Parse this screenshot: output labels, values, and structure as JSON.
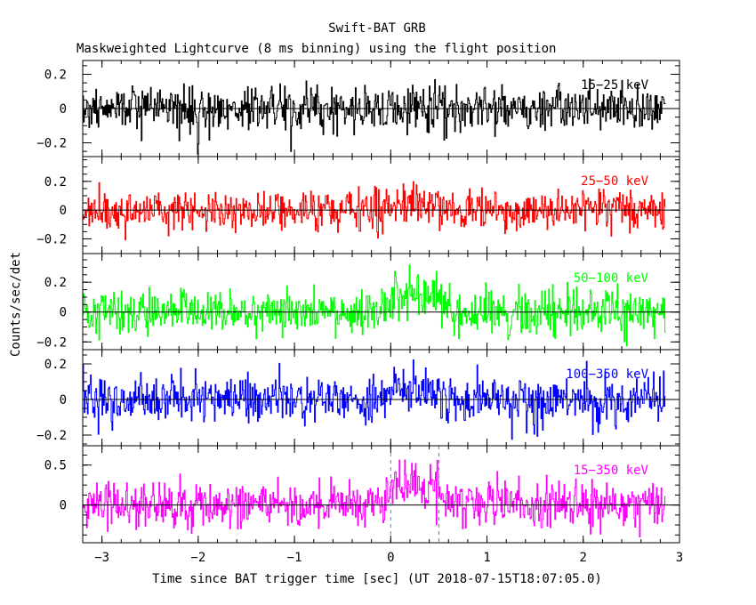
{
  "chart_data": {
    "type": "line",
    "title": "Swift-BAT GRB",
    "subtitle": "Maskweighted Lightcurve (8 ms binning) using the flight position",
    "xlabel": "Time since BAT trigger time [sec] (UT 2018-07-15T18:07:05.0)",
    "ylabel": "Counts/sec/det",
    "xlim": [
      -3.2,
      3.0
    ],
    "x_ticks": [
      -3,
      -2,
      -1,
      0,
      1,
      2,
      3
    ],
    "x_tick_labels": [
      "−3",
      "−2",
      "−1",
      "0",
      "1",
      "2",
      "3"
    ],
    "bin_size_s": 0.008,
    "data_range": [
      -3.2,
      2.85
    ],
    "markers": [
      0.0,
      0.5
    ],
    "marker_color": "#00aaff",
    "panels": [
      {
        "band": "15-25 keV",
        "label": "15−25 keV",
        "color": "#000000",
        "ylim": [
          -0.27,
          0.27
        ],
        "y_ticks": [
          -0.2,
          0,
          0.2
        ],
        "y_tick_labels": [
          "−0.2",
          "0",
          "0.2"
        ],
        "noise_sigma": 0.065,
        "peak_amplitude": 0.0
      },
      {
        "band": "25-50 keV",
        "label": "25−50 keV",
        "color": "#ff0000",
        "ylim": [
          -0.29,
          0.36
        ],
        "y_ticks": [
          -0.2,
          0,
          0.2
        ],
        "y_tick_labels": [
          "−0.2",
          "0",
          "0.2"
        ],
        "noise_sigma": 0.07,
        "peak_amplitude": 0.06
      },
      {
        "band": "50-100 keV",
        "label": "50−100 keV",
        "color": "#00ff00",
        "ylim": [
          -0.24,
          0.38
        ],
        "y_ticks": [
          -0.2,
          0,
          0.2
        ],
        "y_tick_labels": [
          "−0.2",
          "0",
          "0.2"
        ],
        "noise_sigma": 0.075,
        "peak_amplitude": 0.13
      },
      {
        "band": "100-350 keV",
        "label": "100−350 keV",
        "color": "#0000ff",
        "ylim": [
          -0.25,
          0.27
        ],
        "y_ticks": [
          -0.2,
          0,
          0.2
        ],
        "y_tick_labels": [
          "−0.2",
          "0",
          "0.2"
        ],
        "noise_sigma": 0.065,
        "peak_amplitude": 0.07
      },
      {
        "band": "15-350 keV",
        "label": "15−350 keV",
        "color": "#ff00ff",
        "ylim": [
          -0.45,
          0.72
        ],
        "y_ticks": [
          0,
          0.5
        ],
        "y_tick_labels": [
          "0",
          "0.5"
        ],
        "noise_sigma": 0.14,
        "peak_amplitude": 0.27
      }
    ]
  }
}
